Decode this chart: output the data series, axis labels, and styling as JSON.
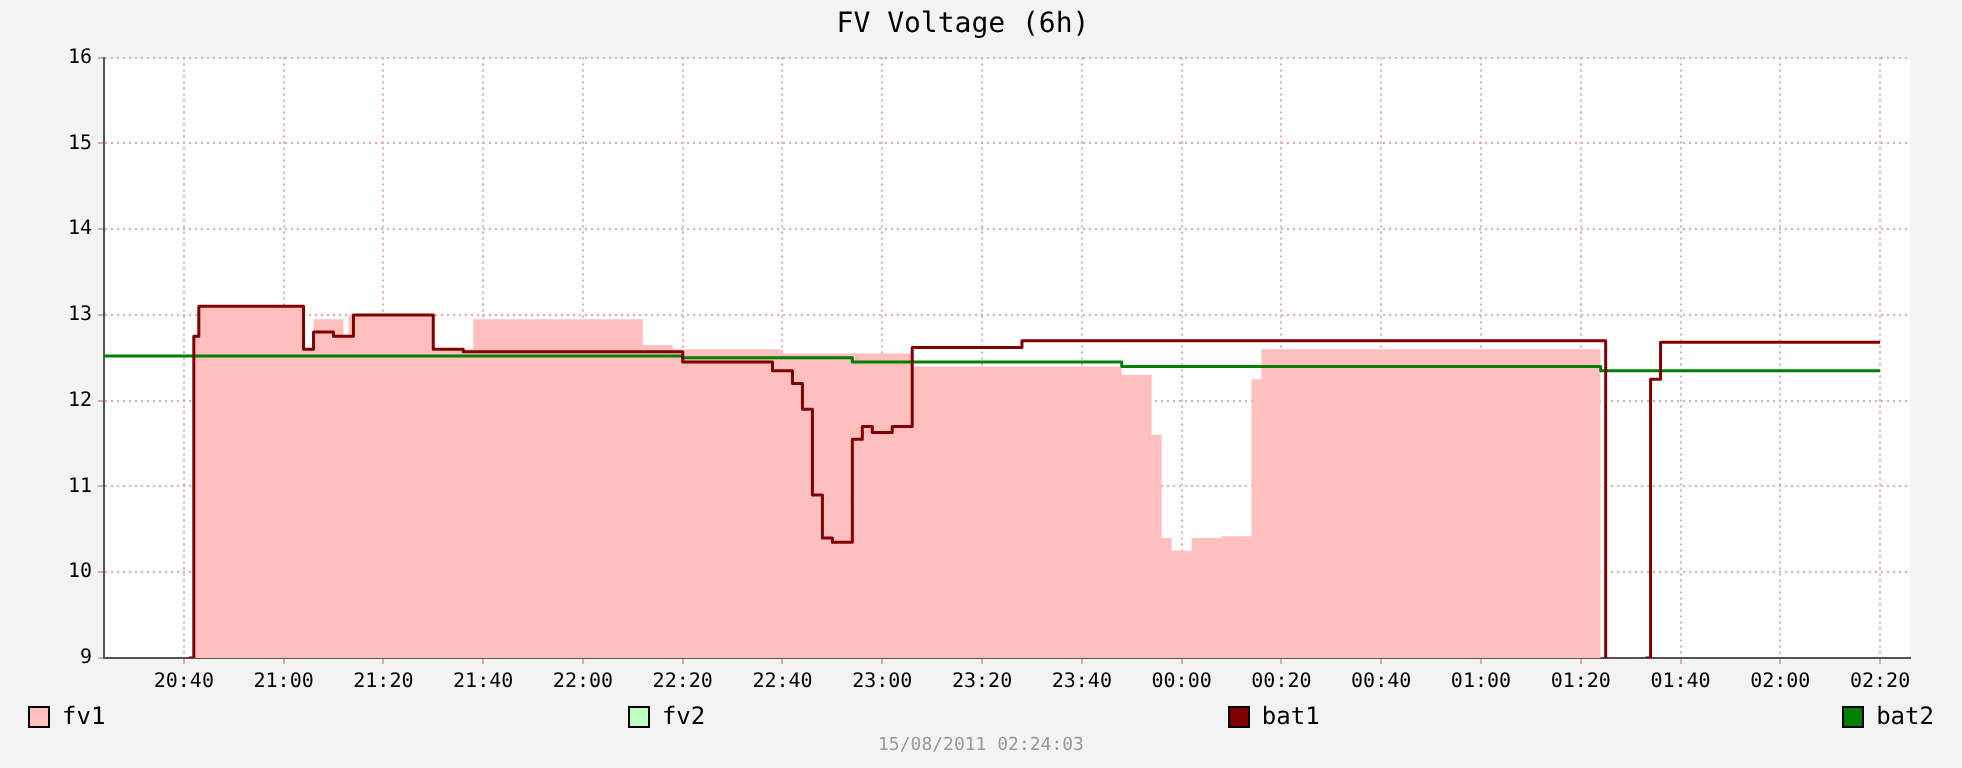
{
  "chart_data": {
    "type": "step",
    "title": "FV Voltage (6h)",
    "xlim": [
      "2011-08-14T20:24",
      "2011-08-15T02:26"
    ],
    "ylim": [
      9,
      16
    ],
    "yticks": [
      9,
      10,
      11,
      12,
      13,
      14,
      15,
      16
    ],
    "xticks": [
      {
        "value": "2011-08-14T20:40",
        "label": "20:40"
      },
      {
        "value": "2011-08-14T21:00",
        "label": "21:00"
      },
      {
        "value": "2011-08-14T21:20",
        "label": "21:20"
      },
      {
        "value": "2011-08-14T21:40",
        "label": "21:40"
      },
      {
        "value": "2011-08-14T22:00",
        "label": "22:00"
      },
      {
        "value": "2011-08-14T22:20",
        "label": "22:20"
      },
      {
        "value": "2011-08-14T22:40",
        "label": "22:40"
      },
      {
        "value": "2011-08-14T23:00",
        "label": "23:00"
      },
      {
        "value": "2011-08-14T23:20",
        "label": "23:20"
      },
      {
        "value": "2011-08-14T23:40",
        "label": "23:40"
      },
      {
        "value": "2011-08-15T00:00",
        "label": "00:00"
      },
      {
        "value": "2011-08-15T00:20",
        "label": "00:20"
      },
      {
        "value": "2011-08-15T00:40",
        "label": "00:40"
      },
      {
        "value": "2011-08-15T01:00",
        "label": "01:00"
      },
      {
        "value": "2011-08-15T01:20",
        "label": "01:20"
      },
      {
        "value": "2011-08-15T01:40",
        "label": "01:40"
      },
      {
        "value": "2011-08-15T02:00",
        "label": "02:00"
      },
      {
        "value": "2011-08-15T02:20",
        "label": "02:20"
      }
    ],
    "grid": true,
    "legend": "bottom",
    "line_style": "solid",
    "series": [
      {
        "name": "fv1",
        "type": "area",
        "color": "#ffbfbf",
        "x": [
          "2011-08-14T20:42",
          "2011-08-14T20:43",
          "2011-08-14T21:04",
          "2011-08-14T21:06",
          "2011-08-14T21:12",
          "2011-08-14T21:13",
          "2011-08-14T21:30",
          "2011-08-14T21:38",
          "2011-08-14T22:12",
          "2011-08-14T22:18",
          "2011-08-14T22:40",
          "2011-08-14T23:06",
          "2011-08-14T23:48",
          "2011-08-14T23:54",
          "2011-08-14T23:56",
          "2011-08-14T23:58",
          "2011-08-15T00:02",
          "2011-08-15T00:08",
          "2011-08-15T00:14",
          "2011-08-15T00:16",
          "2011-08-15T01:24"
        ],
        "values": [
          12.75,
          13.1,
          12.6,
          12.95,
          12.75,
          13.0,
          12.6,
          12.95,
          12.65,
          12.6,
          12.55,
          12.4,
          12.3,
          11.6,
          10.4,
          10.25,
          10.4,
          10.42,
          12.25,
          12.6,
          12.6
        ]
      },
      {
        "name": "fv2",
        "color": "#bfffbf"
      },
      {
        "name": "bat1",
        "color": "#800000",
        "x": [
          "2011-08-14T20:41",
          "2011-08-14T20:42",
          "2011-08-14T20:43",
          "2011-08-14T21:04",
          "2011-08-14T21:06",
          "2011-08-14T21:10",
          "2011-08-14T21:14",
          "2011-08-14T21:30",
          "2011-08-14T21:36",
          "2011-08-14T22:20",
          "2011-08-14T22:38",
          "2011-08-14T22:42",
          "2011-08-14T22:44",
          "2011-08-14T22:46",
          "2011-08-14T22:48",
          "2011-08-14T22:50",
          "2011-08-14T22:54",
          "2011-08-14T22:56",
          "2011-08-14T22:58",
          "2011-08-14T23:02",
          "2011-08-14T23:06",
          "2011-08-14T23:28",
          "2011-08-15T01:25",
          "2011-08-15T01:27",
          "2011-08-15T01:33",
          "2011-08-15T01:34",
          "2011-08-15T01:36",
          "2011-08-15T02:20"
        ],
        "values": [
          9,
          12.75,
          13.1,
          12.6,
          12.8,
          12.75,
          13.0,
          12.6,
          12.57,
          12.45,
          12.35,
          12.2,
          11.9,
          10.9,
          10.4,
          10.35,
          11.55,
          11.7,
          11.63,
          11.7,
          12.62,
          12.7,
          9,
          null,
          9,
          12.25,
          12.68,
          12.68
        ]
      },
      {
        "name": "bat2",
        "color": "#008000",
        "x": [
          "2011-08-14T20:24",
          "2011-08-14T22:20",
          "2011-08-14T22:54",
          "2011-08-14T23:48",
          "2011-08-15T01:24",
          "2011-08-15T02:20"
        ],
        "values": [
          12.52,
          12.5,
          12.45,
          12.4,
          12.35,
          12.35
        ]
      }
    ],
    "annotations": [
      "15/08/2011 02:24:03"
    ]
  }
}
